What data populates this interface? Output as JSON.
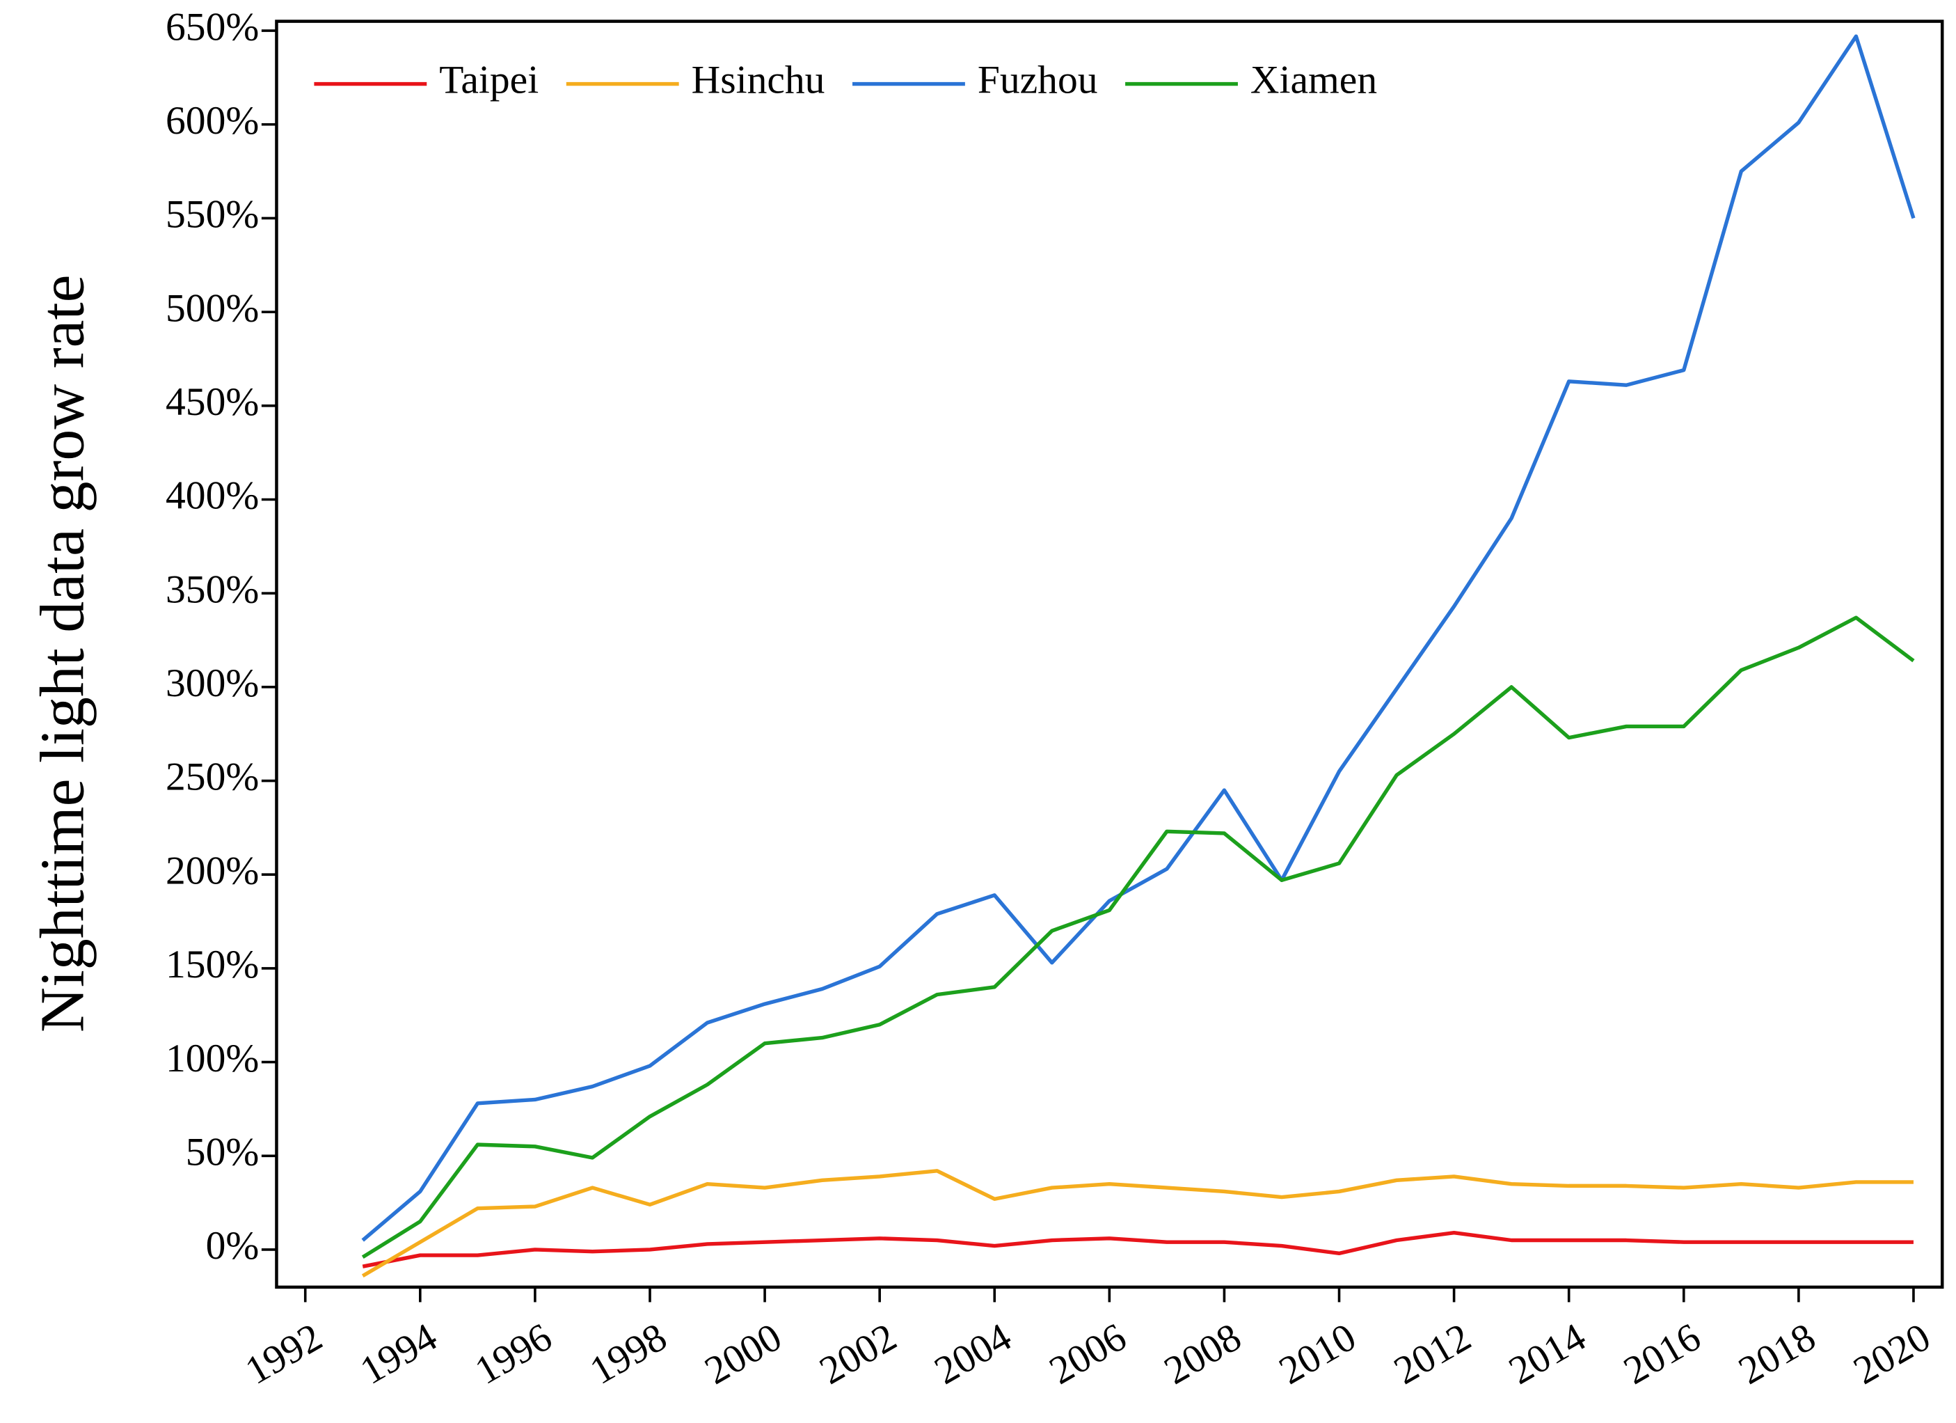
{
  "chart_data": {
    "type": "line",
    "y_label": "Nighttime light data grow rate",
    "x": [
      1993,
      1994,
      1995,
      1996,
      1997,
      1998,
      1999,
      2000,
      2001,
      2002,
      2003,
      2004,
      2005,
      2006,
      2007,
      2008,
      2009,
      2010,
      2011,
      2012,
      2013,
      2014,
      2015,
      2016,
      2017,
      2018,
      2019,
      2020
    ],
    "series": [
      {
        "name": "Taipei",
        "color": "#e8141a",
        "values": [
          -9,
          -3,
          -3,
          0,
          -1,
          0,
          3,
          4,
          5,
          6,
          5,
          2,
          5,
          6,
          4,
          4,
          2,
          -2,
          5,
          9,
          5,
          5,
          5,
          4,
          4,
          4,
          4,
          4
        ]
      },
      {
        "name": "Hsinchu",
        "color": "#f5ad1e",
        "values": [
          -14,
          4,
          22,
          23,
          33,
          24,
          35,
          33,
          37,
          39,
          42,
          27,
          33,
          35,
          33,
          31,
          28,
          31,
          37,
          39,
          35,
          34,
          34,
          33,
          35,
          33,
          36,
          36
        ]
      },
      {
        "name": "Fuzhou",
        "color": "#2a74d6",
        "values": [
          5,
          31,
          78,
          80,
          87,
          98,
          121,
          131,
          139,
          151,
          179,
          189,
          153,
          186,
          203,
          245,
          197,
          255,
          299,
          343,
          390,
          463,
          461,
          469,
          575,
          601,
          647,
          550
        ]
      },
      {
        "name": "Xiamen",
        "color": "#1ca01c",
        "values": [
          -4,
          15,
          56,
          55,
          49,
          71,
          88,
          110,
          113,
          120,
          136,
          140,
          170,
          181,
          223,
          222,
          197,
          206,
          253,
          275,
          300,
          273,
          279,
          279,
          309,
          321,
          337,
          314
        ]
      }
    ],
    "xlim": [
      1991.5,
      2020.5
    ],
    "xticks": [
      1992,
      1994,
      1996,
      1998,
      2000,
      2002,
      2004,
      2006,
      2008,
      2010,
      2012,
      2014,
      2016,
      2018,
      2020
    ],
    "ylim": [
      -20,
      655
    ],
    "yticks": [
      {
        "value": 0,
        "label": "0%"
      },
      {
        "value": 50,
        "label": "50%"
      },
      {
        "value": 100,
        "label": "100%"
      },
      {
        "value": 150,
        "label": "150%"
      },
      {
        "value": 200,
        "label": "200%"
      },
      {
        "value": 250,
        "label": "250%"
      },
      {
        "value": 300,
        "label": "300%"
      },
      {
        "value": 350,
        "label": "350%"
      },
      {
        "value": 400,
        "label": "400%"
      },
      {
        "value": 450,
        "label": "450%"
      },
      {
        "value": 500,
        "label": "500%"
      },
      {
        "value": 550,
        "label": "550%"
      },
      {
        "value": 600,
        "label": "600%"
      },
      {
        "value": 650,
        "label": "650%"
      }
    ],
    "legend": "top-left"
  }
}
